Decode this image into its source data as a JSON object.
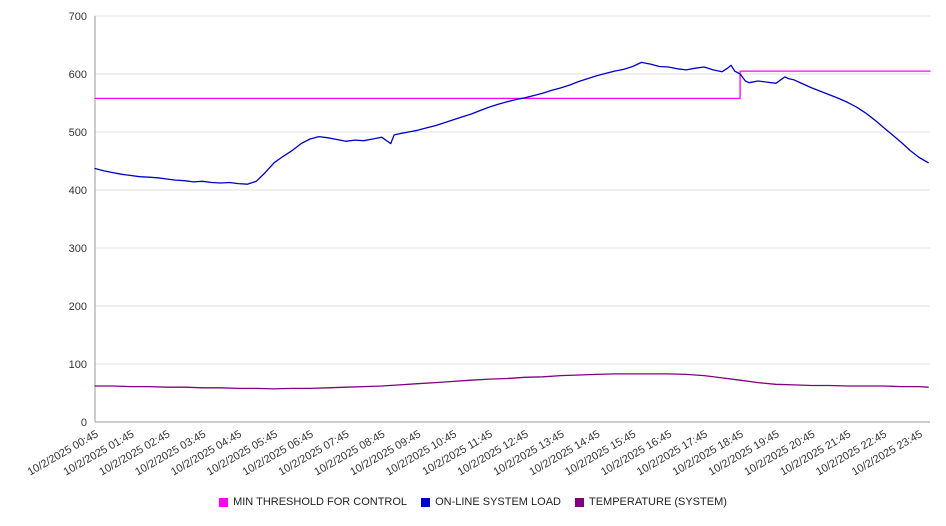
{
  "chart_data": {
    "type": "line",
    "title": "",
    "xlabel": "",
    "ylabel": "",
    "grid": true,
    "legend_position": "bottom",
    "ylim": [
      0,
      700
    ],
    "xlim": [
      0.75,
      24.05
    ],
    "yticks": [
      0,
      100,
      200,
      300,
      400,
      500,
      600,
      700
    ],
    "xticks": [
      {
        "t": 0.75,
        "label": "10/2/2025 00:45"
      },
      {
        "t": 1.75,
        "label": "10/2/2025 01:45"
      },
      {
        "t": 2.75,
        "label": "10/2/2025 02:45"
      },
      {
        "t": 3.75,
        "label": "10/2/2025 03:45"
      },
      {
        "t": 4.75,
        "label": "10/2/2025 04:45"
      },
      {
        "t": 5.75,
        "label": "10/2/2025 05:45"
      },
      {
        "t": 6.75,
        "label": "10/2/2025 06:45"
      },
      {
        "t": 7.75,
        "label": "10/2/2025 07:45"
      },
      {
        "t": 8.75,
        "label": "10/2/2025 08:45"
      },
      {
        "t": 9.75,
        "label": "10/2/2025 09:45"
      },
      {
        "t": 10.75,
        "label": "10/2/2025 10:45"
      },
      {
        "t": 11.75,
        "label": "10/2/2025 11:45"
      },
      {
        "t": 12.75,
        "label": "10/2/2025 12:45"
      },
      {
        "t": 13.75,
        "label": "10/2/2025 13:45"
      },
      {
        "t": 14.75,
        "label": "10/2/2025 14:45"
      },
      {
        "t": 15.75,
        "label": "10/2/2025 15:45"
      },
      {
        "t": 16.75,
        "label": "10/2/2025 16:45"
      },
      {
        "t": 17.75,
        "label": "10/2/2025 17:45"
      },
      {
        "t": 18.75,
        "label": "10/2/2025 18:45"
      },
      {
        "t": 19.75,
        "label": "10/2/2025 19:45"
      },
      {
        "t": 20.75,
        "label": "10/2/2025 20:45"
      },
      {
        "t": 21.75,
        "label": "10/2/2025 21:45"
      },
      {
        "t": 22.75,
        "label": "10/2/2025 22:45"
      },
      {
        "t": 23.75,
        "label": "10/2/2025 23:45"
      }
    ],
    "series": [
      {
        "name": "MIN THRESHOLD FOR CONTROL",
        "color": "#ff00ff",
        "points": [
          [
            0.75,
            558
          ],
          [
            18.75,
            558
          ],
          [
            18.75,
            605
          ],
          [
            24.05,
            605
          ]
        ]
      },
      {
        "name": "ON-LINE SYSTEM LOAD",
        "color": "#0000cd",
        "points": [
          [
            0.75,
            437
          ],
          [
            1.0,
            433
          ],
          [
            1.25,
            430
          ],
          [
            1.5,
            427
          ],
          [
            1.75,
            425
          ],
          [
            2.0,
            423
          ],
          [
            2.25,
            422
          ],
          [
            2.5,
            421
          ],
          [
            2.75,
            419
          ],
          [
            3.0,
            417
          ],
          [
            3.25,
            416
          ],
          [
            3.5,
            414
          ],
          [
            3.75,
            415
          ],
          [
            4.0,
            413
          ],
          [
            4.25,
            412
          ],
          [
            4.5,
            413
          ],
          [
            4.75,
            411
          ],
          [
            5.0,
            410
          ],
          [
            5.25,
            415
          ],
          [
            5.5,
            430
          ],
          [
            5.75,
            447
          ],
          [
            6.0,
            458
          ],
          [
            6.25,
            468
          ],
          [
            6.5,
            480
          ],
          [
            6.75,
            488
          ],
          [
            7.0,
            492
          ],
          [
            7.25,
            490
          ],
          [
            7.5,
            487
          ],
          [
            7.75,
            484
          ],
          [
            8.0,
            486
          ],
          [
            8.25,
            485
          ],
          [
            8.5,
            488
          ],
          [
            8.75,
            491
          ],
          [
            9.0,
            480
          ],
          [
            9.1,
            495
          ],
          [
            9.25,
            497
          ],
          [
            9.5,
            500
          ],
          [
            9.75,
            503
          ],
          [
            10.0,
            507
          ],
          [
            10.25,
            511
          ],
          [
            10.5,
            516
          ],
          [
            10.75,
            521
          ],
          [
            11.0,
            526
          ],
          [
            11.25,
            531
          ],
          [
            11.5,
            537
          ],
          [
            11.75,
            543
          ],
          [
            12.0,
            548
          ],
          [
            12.25,
            552
          ],
          [
            12.5,
            556
          ],
          [
            12.75,
            559
          ],
          [
            13.0,
            563
          ],
          [
            13.25,
            567
          ],
          [
            13.5,
            572
          ],
          [
            13.75,
            576
          ],
          [
            14.0,
            581
          ],
          [
            14.25,
            587
          ],
          [
            14.5,
            592
          ],
          [
            14.75,
            597
          ],
          [
            15.0,
            601
          ],
          [
            15.25,
            605
          ],
          [
            15.5,
            608
          ],
          [
            15.75,
            613
          ],
          [
            16.0,
            620
          ],
          [
            16.25,
            617
          ],
          [
            16.5,
            613
          ],
          [
            16.75,
            612
          ],
          [
            17.0,
            609
          ],
          [
            17.25,
            607
          ],
          [
            17.5,
            610
          ],
          [
            17.75,
            612
          ],
          [
            18.0,
            607
          ],
          [
            18.25,
            604
          ],
          [
            18.4,
            610
          ],
          [
            18.5,
            615
          ],
          [
            18.6,
            605
          ],
          [
            18.75,
            600
          ],
          [
            18.9,
            588
          ],
          [
            19.0,
            585
          ],
          [
            19.25,
            588
          ],
          [
            19.5,
            586
          ],
          [
            19.75,
            584
          ],
          [
            20.0,
            595
          ],
          [
            20.1,
            592
          ],
          [
            20.25,
            590
          ],
          [
            20.5,
            583
          ],
          [
            20.75,
            576
          ],
          [
            21.0,
            570
          ],
          [
            21.25,
            564
          ],
          [
            21.5,
            558
          ],
          [
            21.75,
            551
          ],
          [
            22.0,
            543
          ],
          [
            22.25,
            533
          ],
          [
            22.5,
            521
          ],
          [
            22.75,
            508
          ],
          [
            23.0,
            495
          ],
          [
            23.25,
            482
          ],
          [
            23.5,
            468
          ],
          [
            23.75,
            456
          ],
          [
            24.0,
            447
          ]
        ]
      },
      {
        "name": "TEMPERATURE (SYSTEM)",
        "color": "#800080",
        "points": [
          [
            0.75,
            62
          ],
          [
            1.25,
            62
          ],
          [
            1.75,
            61
          ],
          [
            2.25,
            61
          ],
          [
            2.75,
            60
          ],
          [
            3.25,
            60
          ],
          [
            3.75,
            59
          ],
          [
            4.25,
            59
          ],
          [
            4.75,
            58
          ],
          [
            5.25,
            58
          ],
          [
            5.75,
            57
          ],
          [
            6.25,
            58
          ],
          [
            6.75,
            58
          ],
          [
            7.25,
            59
          ],
          [
            7.75,
            60
          ],
          [
            8.25,
            61
          ],
          [
            8.75,
            62
          ],
          [
            9.25,
            64
          ],
          [
            9.75,
            66
          ],
          [
            10.25,
            68
          ],
          [
            10.75,
            70
          ],
          [
            11.25,
            72
          ],
          [
            11.75,
            74
          ],
          [
            12.25,
            75
          ],
          [
            12.75,
            77
          ],
          [
            13.25,
            78
          ],
          [
            13.75,
            80
          ],
          [
            14.25,
            81
          ],
          [
            14.75,
            82
          ],
          [
            15.25,
            83
          ],
          [
            15.75,
            83
          ],
          [
            16.25,
            83
          ],
          [
            16.75,
            83
          ],
          [
            17.25,
            82
          ],
          [
            17.75,
            80
          ],
          [
            18.25,
            76
          ],
          [
            18.75,
            72
          ],
          [
            19.25,
            68
          ],
          [
            19.75,
            65
          ],
          [
            20.25,
            64
          ],
          [
            20.75,
            63
          ],
          [
            21.25,
            63
          ],
          [
            21.75,
            62
          ],
          [
            22.25,
            62
          ],
          [
            22.75,
            62
          ],
          [
            23.25,
            61
          ],
          [
            23.75,
            61
          ],
          [
            24.0,
            60
          ]
        ]
      }
    ]
  },
  "style": {
    "grid_color": "#e0e0e0",
    "axis_color": "#999999",
    "tick_text_color": "#333333"
  }
}
